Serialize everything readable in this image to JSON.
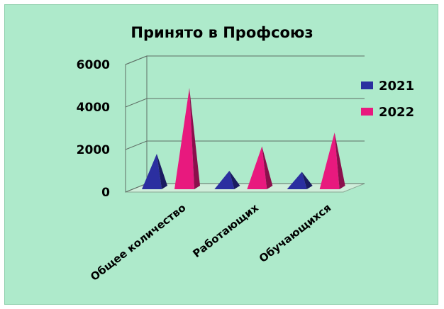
{
  "chart_data": {
    "type": "bar",
    "title": "Принято в Профсоюз",
    "categories": [
      "Общее количество",
      "Работающих",
      "Обучающихся"
    ],
    "series": [
      {
        "name": "2021",
        "values": [
          1800,
          1000,
          950
        ],
        "color": "#2b2fa0"
      },
      {
        "name": "2022",
        "values": [
          4900,
          2150,
          2800
        ],
        "color": "#e8197e"
      }
    ],
    "ylim": [
      0,
      6000
    ],
    "yticks": [
      "0",
      "2000",
      "4000",
      "6000"
    ],
    "ytick_values": [
      0,
      2000,
      4000,
      6000
    ],
    "bar_shape": "pyramid-3d",
    "grid": true,
    "legend_position": "right",
    "xlabel": "",
    "ylabel": ""
  }
}
